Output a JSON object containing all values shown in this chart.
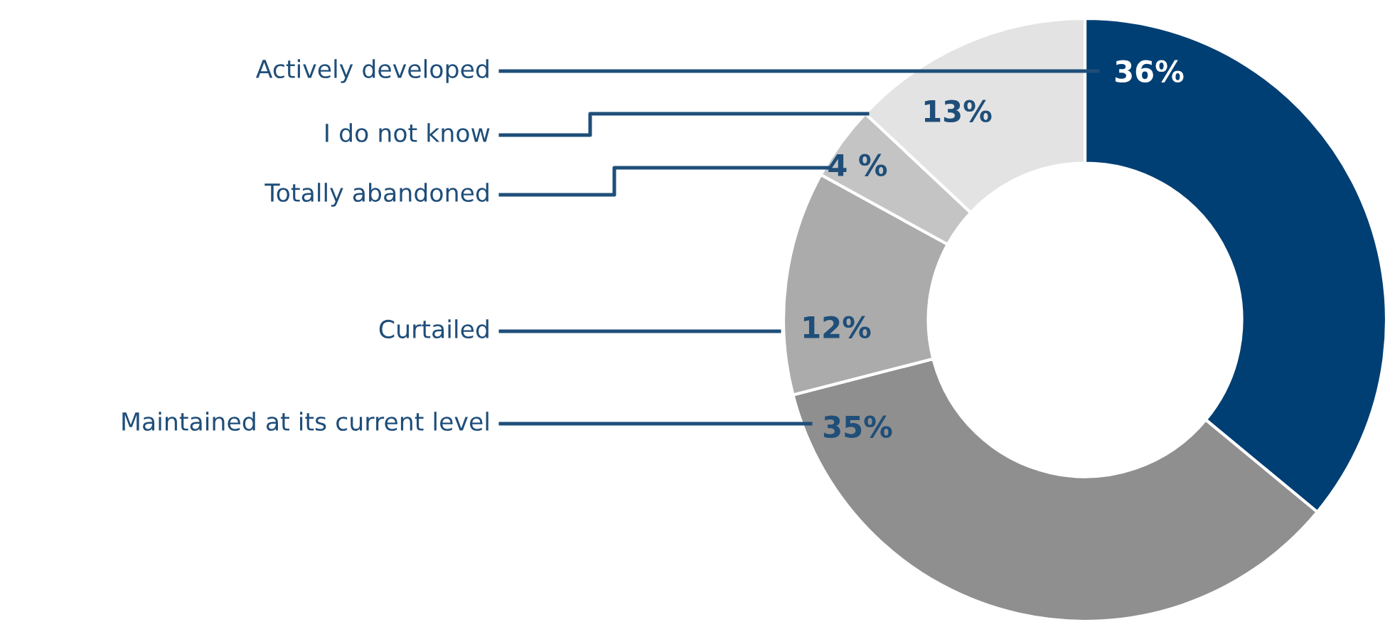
{
  "chart_data": {
    "type": "donut",
    "categories": [
      "Actively developed",
      "Maintained at its current level",
      "Curtailed",
      "Totally abandoned",
      "I do not know"
    ],
    "values": [
      36,
      35,
      12,
      4,
      13
    ],
    "colors": [
      "#003f74",
      "#8f8f8f",
      "#ababab",
      "#c4c4c4",
      "#e3e3e3"
    ],
    "value_labels": [
      "36%",
      "35%",
      "12%",
      "4 %",
      "13%"
    ],
    "legend": false
  }
}
